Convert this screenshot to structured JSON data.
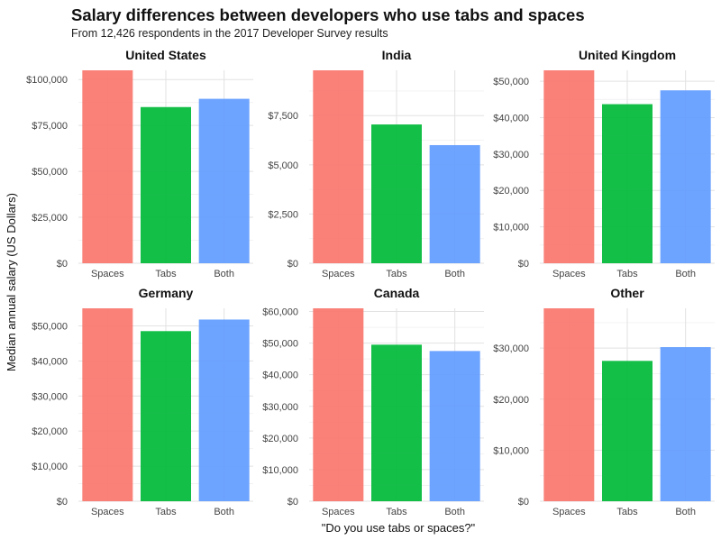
{
  "title": "Salary differences between developers who use tabs and spaces",
  "subtitle": "From 12,426 respondents in the 2017 Developer Survey results",
  "chart_data": {
    "type": "bar",
    "xlabel": "\"Do you use tabs or spaces?\"",
    "ylabel": "Median annual salary (US Dollars)",
    "grid": true,
    "categories": [
      "Spaces",
      "Tabs",
      "Both"
    ],
    "colors": {
      "Spaces": "#F8766D",
      "Tabs": "#00BA38",
      "Both": "#619CFF"
    },
    "panels": [
      {
        "name": "United States",
        "values": [
          105000,
          85000,
          89500
        ],
        "ylim": [
          0,
          105000
        ],
        "yticks": [
          0,
          25000,
          50000,
          75000,
          100000
        ],
        "yticklabels": [
          "$0",
          "$25,000",
          "$50,000",
          "$75,000",
          "$100,000"
        ]
      },
      {
        "name": "India",
        "values": [
          9800,
          7050,
          6000
        ],
        "ylim": [
          0,
          9800
        ],
        "yticks": [
          0,
          2500,
          5000,
          7500
        ],
        "yticklabels": [
          "$0",
          "$2,500",
          "$5,000",
          "$7,500"
        ]
      },
      {
        "name": "United Kingdom",
        "values": [
          53000,
          43700,
          47500
        ],
        "ylim": [
          0,
          53000
        ],
        "yticks": [
          0,
          10000,
          20000,
          30000,
          40000,
          50000
        ],
        "yticklabels": [
          "$0",
          "$10,000",
          "$20,000",
          "$30,000",
          "$40,000",
          "$50,000"
        ]
      },
      {
        "name": "Germany",
        "values": [
          55000,
          48500,
          51800
        ],
        "ylim": [
          0,
          55000
        ],
        "yticks": [
          0,
          10000,
          20000,
          30000,
          40000,
          50000
        ],
        "yticklabels": [
          "$0",
          "$10,000",
          "$20,000",
          "$30,000",
          "$40,000",
          "$50,000"
        ]
      },
      {
        "name": "Canada",
        "values": [
          61000,
          49500,
          47500
        ],
        "ylim": [
          0,
          61000
        ],
        "yticks": [
          0,
          10000,
          20000,
          30000,
          40000,
          50000,
          60000
        ],
        "yticklabels": [
          "$0",
          "$10,000",
          "$20,000",
          "$30,000",
          "$40,000",
          "$50,000",
          "$60,000"
        ]
      },
      {
        "name": "Other",
        "values": [
          37800,
          27500,
          30200
        ],
        "ylim": [
          0,
          37800
        ],
        "yticks": [
          0,
          10000,
          20000,
          30000
        ],
        "yticklabels": [
          "$0",
          "$10,000",
          "$20,000",
          "$30,000"
        ]
      }
    ]
  }
}
